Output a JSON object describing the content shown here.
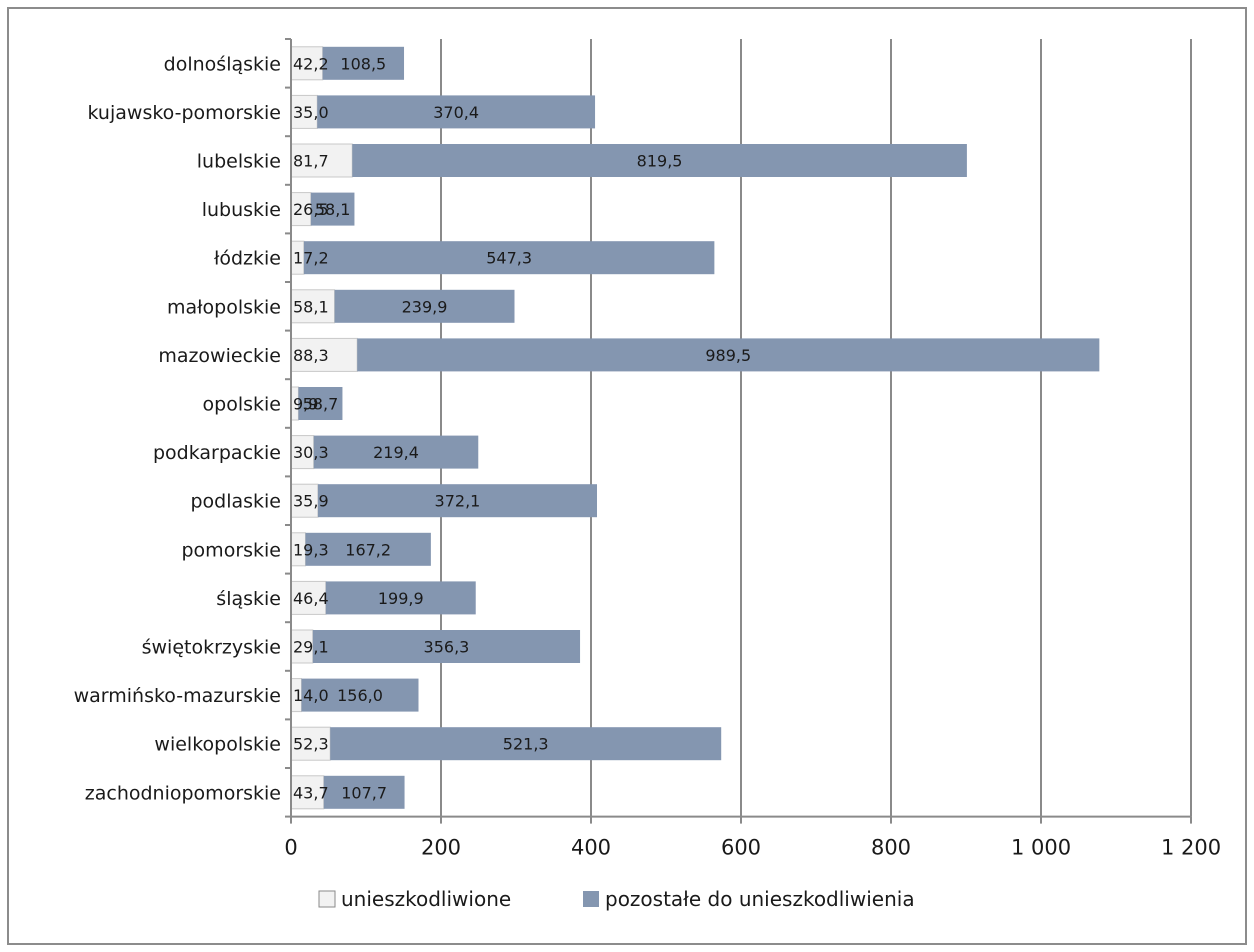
{
  "chart_data": {
    "type": "bar",
    "orientation": "horizontal",
    "stacked": true,
    "categories": [
      "dolnośląskie",
      "kujawsko-pomorskie",
      "lubelskie",
      "lubuskie",
      "łódzkie",
      "małopolskie",
      "mazowieckie",
      "opolskie",
      "podkarpackie",
      "podlaskie",
      "pomorskie",
      "śląskie",
      "świętokrzyskie",
      "warmińsko-mazurskie",
      "wielkopolskie",
      "zachodniopomorskie"
    ],
    "series": [
      {
        "name": "unieszkodliwione",
        "color": "#f2f2f2",
        "values": [
          42.2,
          35.0,
          81.7,
          26.5,
          17.2,
          58.1,
          88.3,
          9.9,
          30.3,
          35.9,
          19.3,
          46.4,
          29.1,
          14.0,
          52.3,
          43.7
        ],
        "labels": [
          "42,2",
          "35,0",
          "81,7",
          "26,5",
          "17,2",
          "58,1",
          "88,3",
          "9,9",
          "30,3",
          "35,9",
          "19,3",
          "46,4",
          "29,1",
          "14,0",
          "52,3",
          "43,7"
        ]
      },
      {
        "name": "pozostałe do unieszkodliwienia",
        "color": "#8496b0",
        "values": [
          108.5,
          370.4,
          819.5,
          58.1,
          547.3,
          239.9,
          989.5,
          58.7,
          219.4,
          372.1,
          167.2,
          199.9,
          356.3,
          156.0,
          521.3,
          107.7
        ],
        "labels": [
          "108,5",
          "370,4",
          "819,5",
          "58,1",
          "547,3",
          "239,9",
          "989,5",
          "58,7",
          "219,4",
          "372,1",
          "167,2",
          "199,9",
          "356,3",
          "156,0",
          "521,3",
          "107,7"
        ]
      }
    ],
    "xlim": [
      0,
      1200
    ],
    "xticks": [
      0,
      200,
      400,
      600,
      800,
      1000,
      1200
    ],
    "xtick_labels": [
      "0",
      "200",
      "400",
      "600",
      "800",
      "1 000",
      "1 200"
    ],
    "grid": "vertical",
    "legend": "bottom",
    "title": "",
    "xlabel": "",
    "ylabel": ""
  }
}
